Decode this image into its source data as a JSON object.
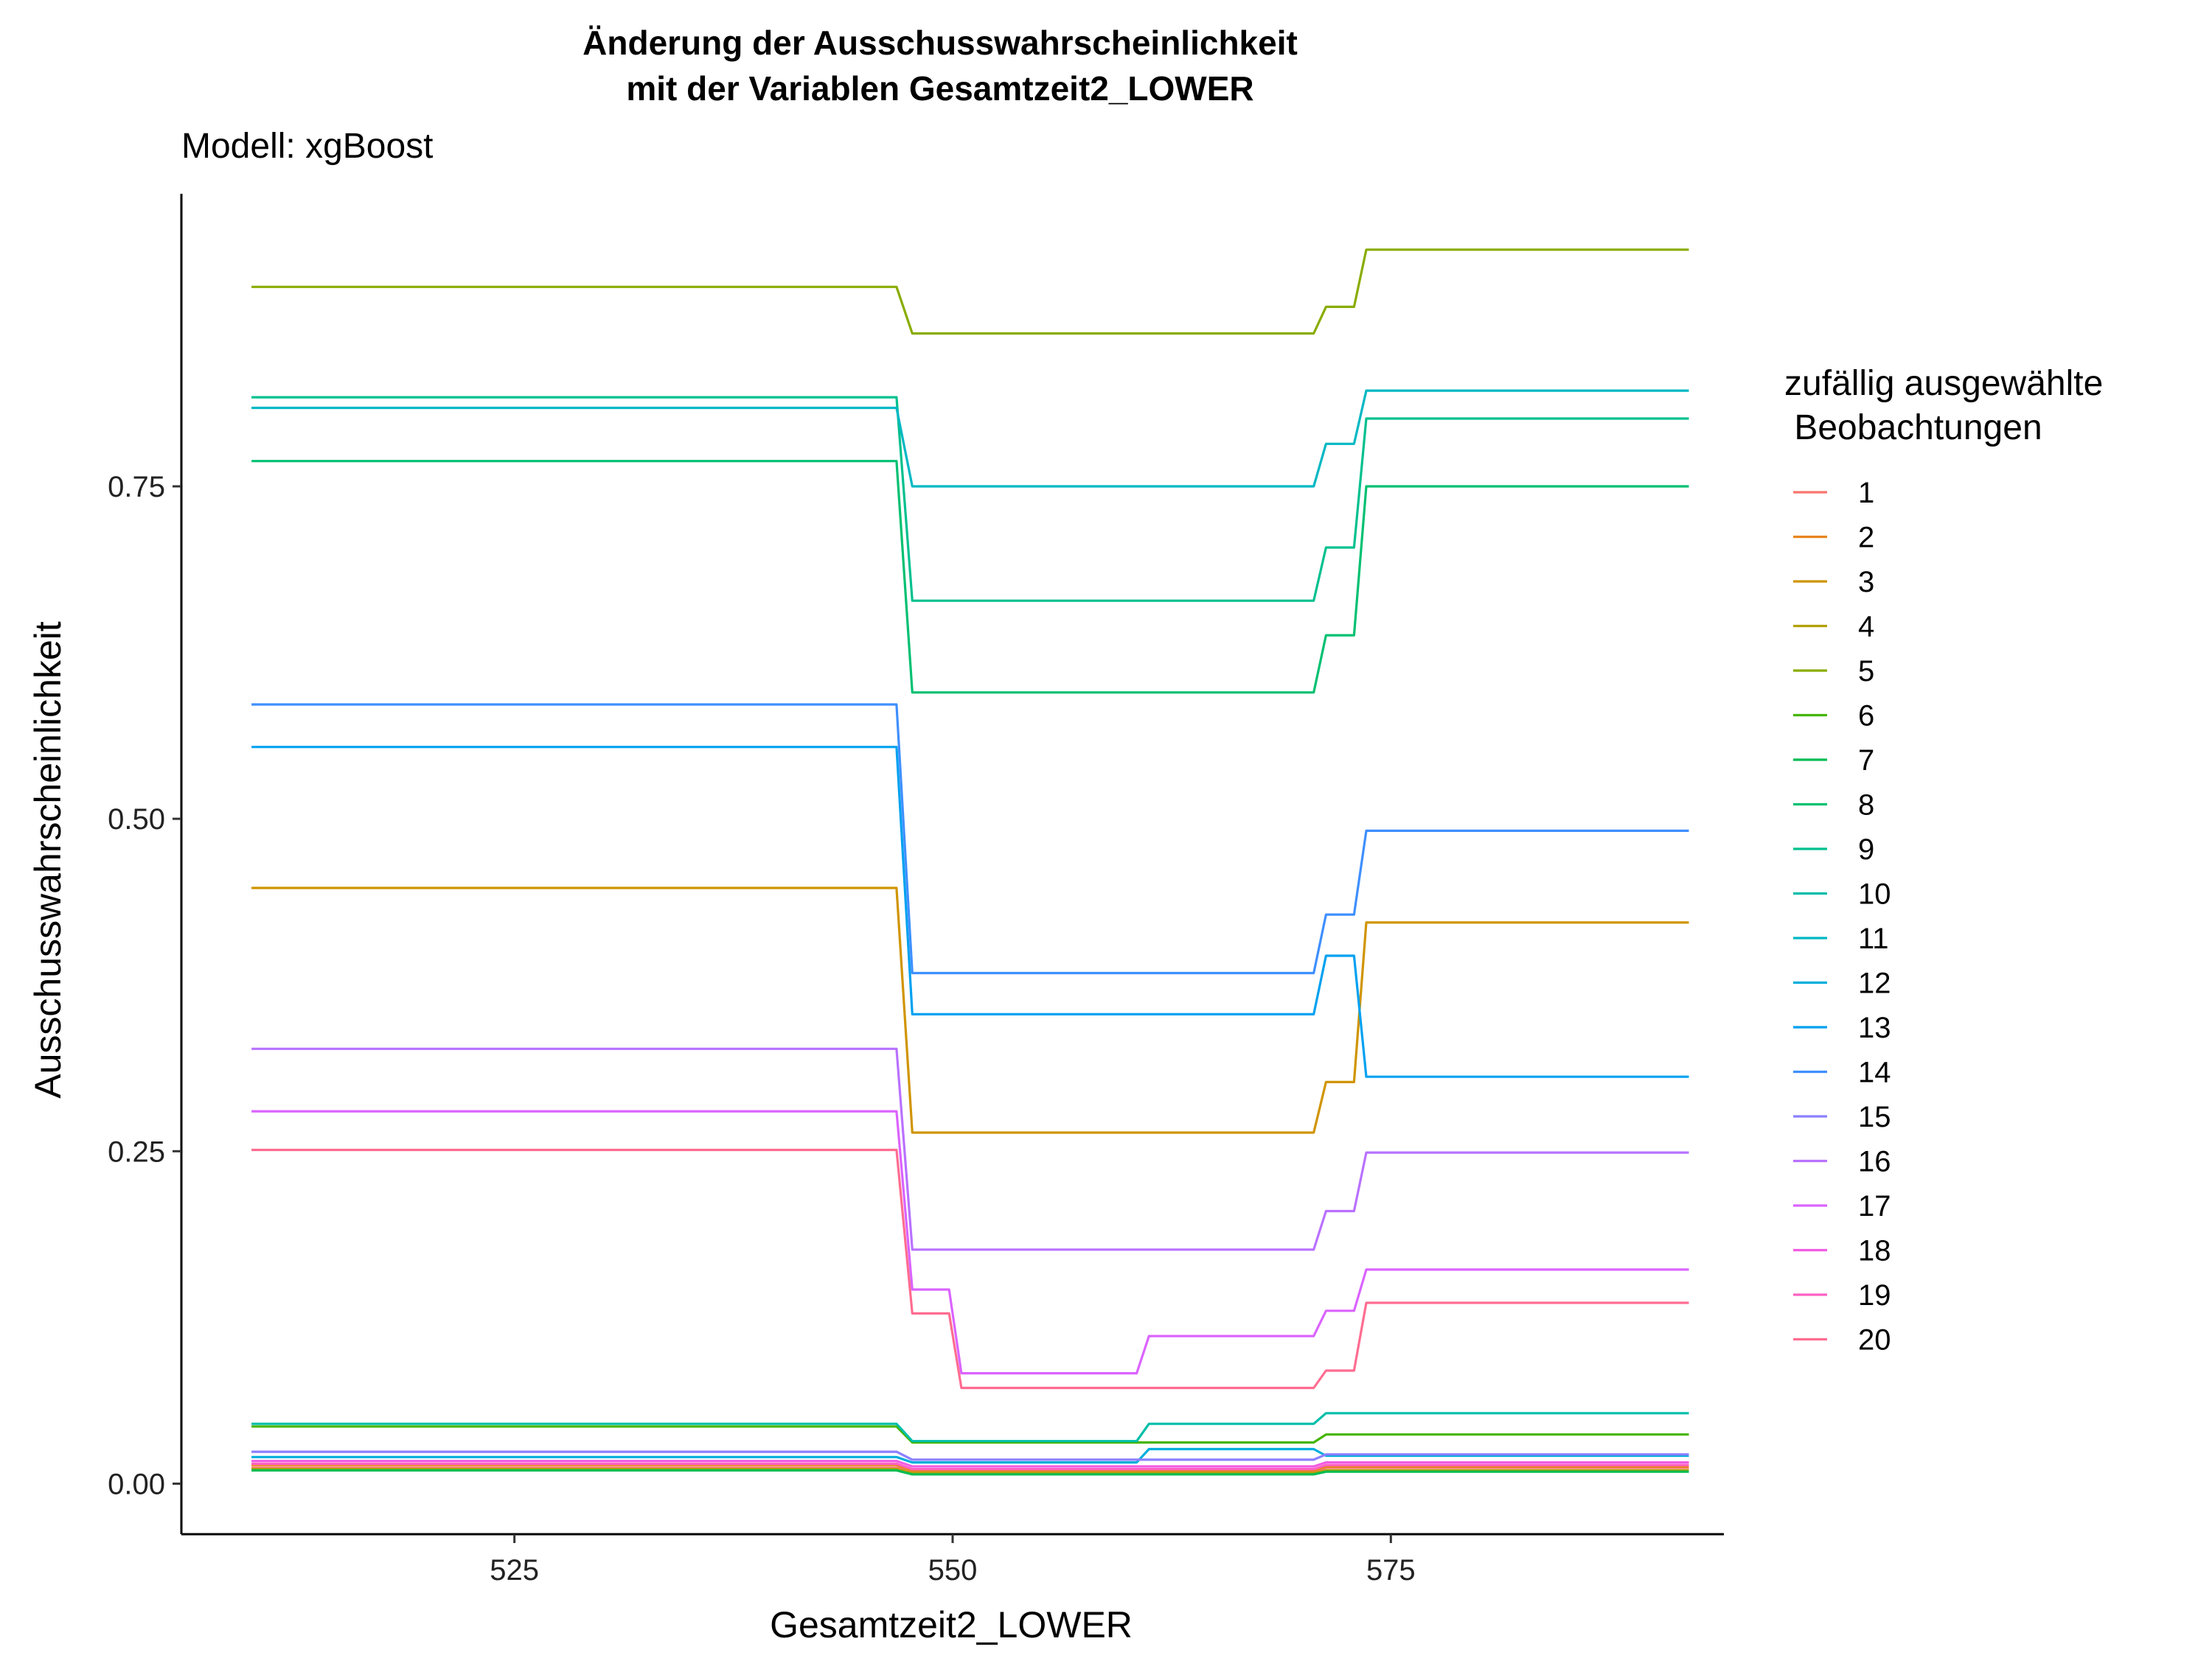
{
  "chart_data": {
    "type": "line",
    "title": [
      "Änderung der Ausschusswahrscheinlichkeit",
      "mit der Variablen Gesamtzeit2_LOWER"
    ],
    "subtitle": "Modell: xgBoost",
    "xlabel": "Gesamtzeit2_LOWER",
    "ylabel": "Ausschusswahrscheinlichkeit",
    "xlim": [
      506,
      594
    ],
    "ylim": [
      -0.038,
      0.97
    ],
    "xticks": [
      525,
      550,
      575
    ],
    "xtick_labels": [
      "525",
      "550",
      "575"
    ],
    "yticks": [
      0,
      0.25,
      0.5,
      0.75
    ],
    "ytick_labels": [
      "0.00",
      "0.25",
      "0.50",
      "0.75"
    ],
    "grid": false,
    "legend": {
      "title": [
        "zufällig ausgewählte",
        " Beobachtungen"
      ],
      "position": "right"
    },
    "series": [
      {
        "name": "1",
        "color": "#F8766D",
        "points": [
          [
            510,
            0.012
          ],
          [
            546.8,
            0.012
          ],
          [
            547.7,
            0.009
          ],
          [
            570.6,
            0.009
          ],
          [
            571.3,
            0.012
          ],
          [
            592,
            0.012
          ]
        ]
      },
      {
        "name": "2",
        "color": "#E7851E",
        "points": [
          [
            510,
            0.014
          ],
          [
            546.8,
            0.014
          ],
          [
            547.7,
            0.01
          ],
          [
            570.6,
            0.01
          ],
          [
            571.3,
            0.013
          ],
          [
            592,
            0.013
          ]
        ]
      },
      {
        "name": "3",
        "color": "#D09400",
        "points": [
          [
            510,
            0.448
          ],
          [
            546.8,
            0.448
          ],
          [
            547.7,
            0.264
          ],
          [
            570.6,
            0.264
          ],
          [
            571.3,
            0.302
          ],
          [
            572.9,
            0.302
          ],
          [
            573.6,
            0.422
          ],
          [
            592,
            0.422
          ]
        ]
      },
      {
        "name": "4",
        "color": "#B2A100",
        "points": [
          [
            510,
            0.011
          ],
          [
            546.8,
            0.011
          ],
          [
            547.7,
            0.008
          ],
          [
            570.6,
            0.008
          ],
          [
            571.3,
            0.01
          ],
          [
            592,
            0.01
          ]
        ]
      },
      {
        "name": "5",
        "color": "#89AC00",
        "points": [
          [
            510,
            0.9
          ],
          [
            546.8,
            0.9
          ],
          [
            547.7,
            0.865
          ],
          [
            570.6,
            0.865
          ],
          [
            571.3,
            0.885
          ],
          [
            572.9,
            0.885
          ],
          [
            573.6,
            0.928
          ],
          [
            592,
            0.928
          ]
        ]
      },
      {
        "name": "6",
        "color": "#45B500",
        "points": [
          [
            510,
            0.043
          ],
          [
            546.8,
            0.043
          ],
          [
            547.7,
            0.031
          ],
          [
            570.6,
            0.031
          ],
          [
            571.3,
            0.037
          ],
          [
            592,
            0.037
          ]
        ]
      },
      {
        "name": "7",
        "color": "#00BC51",
        "points": [
          [
            510,
            0.01
          ],
          [
            546.8,
            0.01
          ],
          [
            547.7,
            0.007
          ],
          [
            570.6,
            0.007
          ],
          [
            571.3,
            0.009
          ],
          [
            592,
            0.009
          ]
        ]
      },
      {
        "name": "8",
        "color": "#00C071",
        "points": [
          [
            510,
            0.769
          ],
          [
            546.8,
            0.769
          ],
          [
            547.7,
            0.595
          ],
          [
            570.6,
            0.595
          ],
          [
            571.3,
            0.638
          ],
          [
            572.9,
            0.638
          ],
          [
            573.6,
            0.75
          ],
          [
            592,
            0.75
          ]
        ]
      },
      {
        "name": "9",
        "color": "#00C08E",
        "points": [
          [
            510,
            0.817
          ],
          [
            546.8,
            0.817
          ],
          [
            547.7,
            0.664
          ],
          [
            570.6,
            0.664
          ],
          [
            571.3,
            0.704
          ],
          [
            572.9,
            0.704
          ],
          [
            573.6,
            0.801
          ],
          [
            592,
            0.801
          ]
        ]
      },
      {
        "name": "10",
        "color": "#00BEA9",
        "points": [
          [
            510,
            0.045
          ],
          [
            546.8,
            0.045
          ],
          [
            547.7,
            0.032
          ],
          [
            560.5,
            0.032
          ],
          [
            561.2,
            0.045
          ],
          [
            570.6,
            0.045
          ],
          [
            571.3,
            0.053
          ],
          [
            592,
            0.053
          ]
        ]
      },
      {
        "name": "11",
        "color": "#00B8C3",
        "points": [
          [
            510,
            0.809
          ],
          [
            546.8,
            0.809
          ],
          [
            547.7,
            0.75
          ],
          [
            570.6,
            0.75
          ],
          [
            571.3,
            0.782
          ],
          [
            572.9,
            0.782
          ],
          [
            573.6,
            0.822
          ],
          [
            592,
            0.822
          ]
        ]
      },
      {
        "name": "12",
        "color": "#00AEDB",
        "points": [
          [
            510,
            0.02
          ],
          [
            546.8,
            0.02
          ],
          [
            547.7,
            0.016
          ],
          [
            560.5,
            0.016
          ],
          [
            561.2,
            0.026
          ],
          [
            570.6,
            0.026
          ],
          [
            571.3,
            0.021
          ],
          [
            592,
            0.021
          ]
        ]
      },
      {
        "name": "13",
        "color": "#00A1F0",
        "points": [
          [
            510,
            0.554
          ],
          [
            546.8,
            0.554
          ],
          [
            547.7,
            0.353
          ],
          [
            570.6,
            0.353
          ],
          [
            571.3,
            0.397
          ],
          [
            572.9,
            0.397
          ],
          [
            573.6,
            0.306
          ],
          [
            592,
            0.306
          ]
        ]
      },
      {
        "name": "14",
        "color": "#3F8FFF",
        "points": [
          [
            510,
            0.586
          ],
          [
            546.8,
            0.586
          ],
          [
            547.7,
            0.384
          ],
          [
            570.6,
            0.384
          ],
          [
            571.3,
            0.428
          ],
          [
            572.9,
            0.428
          ],
          [
            573.6,
            0.491
          ],
          [
            592,
            0.491
          ]
        ]
      },
      {
        "name": "15",
        "color": "#8B80FF",
        "points": [
          [
            510,
            0.024
          ],
          [
            546.8,
            0.024
          ],
          [
            547.7,
            0.018
          ],
          [
            570.6,
            0.018
          ],
          [
            571.3,
            0.022
          ],
          [
            592,
            0.022
          ]
        ]
      },
      {
        "name": "16",
        "color": "#B971FF",
        "points": [
          [
            510,
            0.327
          ],
          [
            546.8,
            0.327
          ],
          [
            547.7,
            0.176
          ],
          [
            570.6,
            0.176
          ],
          [
            571.3,
            0.205
          ],
          [
            572.9,
            0.205
          ],
          [
            573.6,
            0.249
          ],
          [
            592,
            0.249
          ]
        ]
      },
      {
        "name": "17",
        "color": "#DB63FF",
        "points": [
          [
            510,
            0.28
          ],
          [
            546.8,
            0.28
          ],
          [
            547.7,
            0.146
          ],
          [
            549.8,
            0.146
          ],
          [
            550.5,
            0.083
          ],
          [
            560.5,
            0.083
          ],
          [
            561.2,
            0.111
          ],
          [
            570.6,
            0.111
          ],
          [
            571.3,
            0.13
          ],
          [
            572.9,
            0.13
          ],
          [
            573.6,
            0.161
          ],
          [
            592,
            0.161
          ]
        ]
      },
      {
        "name": "18",
        "color": "#F15BE3",
        "points": [
          [
            510,
            0.017
          ],
          [
            546.8,
            0.017
          ],
          [
            547.7,
            0.013
          ],
          [
            570.6,
            0.013
          ],
          [
            571.3,
            0.016
          ],
          [
            592,
            0.016
          ]
        ]
      },
      {
        "name": "19",
        "color": "#FD61C3",
        "points": [
          [
            510,
            0.015
          ],
          [
            546.8,
            0.015
          ],
          [
            547.7,
            0.011
          ],
          [
            570.6,
            0.011
          ],
          [
            571.3,
            0.014
          ],
          [
            592,
            0.014
          ]
        ]
      },
      {
        "name": "20",
        "color": "#FF6C90",
        "points": [
          [
            510,
            0.251
          ],
          [
            546.8,
            0.251
          ],
          [
            547.7,
            0.128
          ],
          [
            549.8,
            0.128
          ],
          [
            550.5,
            0.072
          ],
          [
            570.6,
            0.072
          ],
          [
            571.3,
            0.085
          ],
          [
            572.9,
            0.085
          ],
          [
            573.6,
            0.136
          ],
          [
            592,
            0.136
          ]
        ]
      }
    ]
  }
}
